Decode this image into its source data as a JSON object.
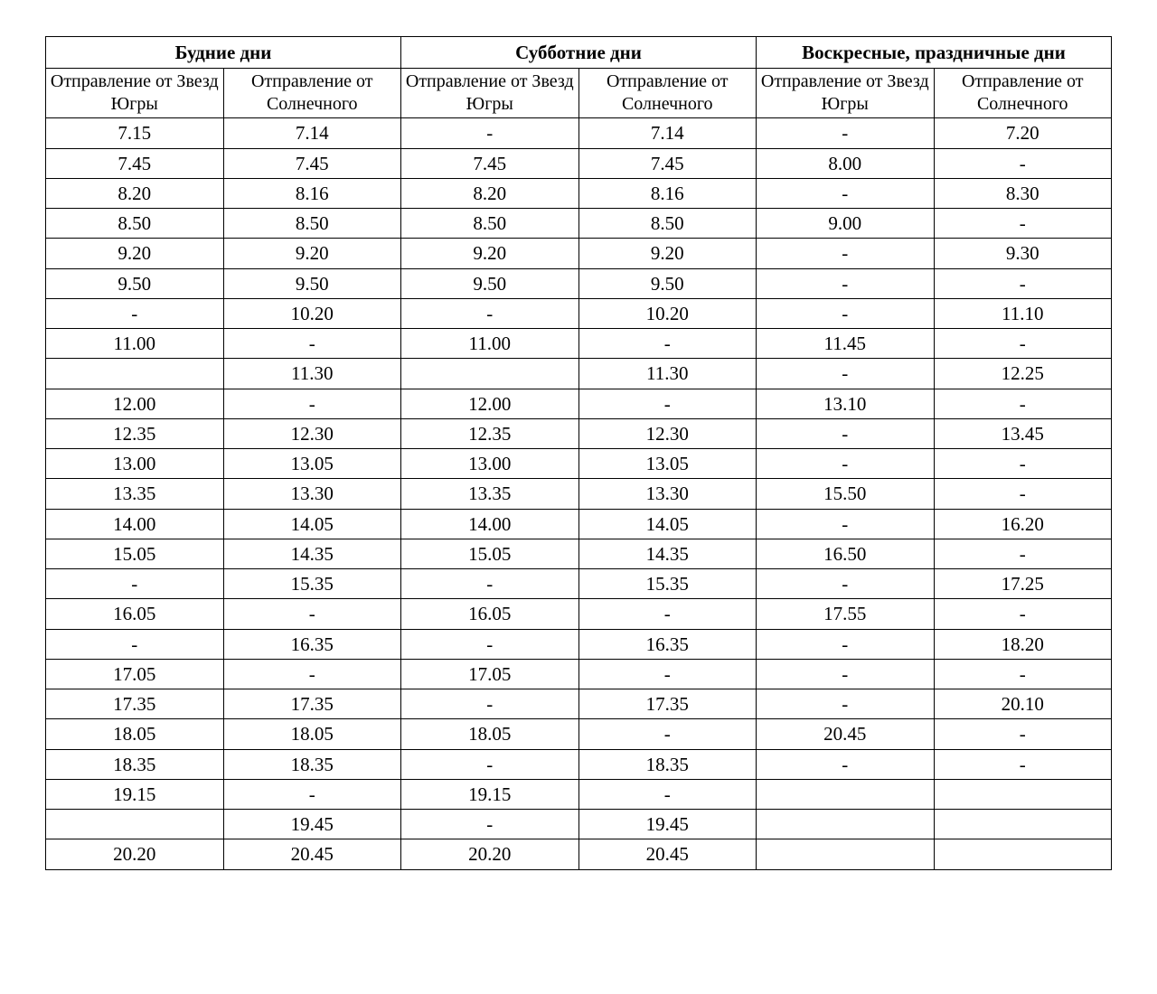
{
  "schedule": {
    "type": "table",
    "background_color": "#ffffff",
    "border_color": "#000000",
    "font_family": "Times New Roman",
    "header_fontsize": 21,
    "cell_fontsize": 21,
    "groups": [
      {
        "title": "Будние дни",
        "col_a": "Отправление от Звезд Югры",
        "col_b": "Отправление от Солнечного"
      },
      {
        "title": "Субботние дни",
        "col_a": "Отправление от Звезд Югры",
        "col_b": "Отправление от Солнечного"
      },
      {
        "title": "Воскресные, праздничные дни",
        "col_a": "Отправление от Звезд Югры",
        "col_b": "Отправление от Солнечного"
      }
    ],
    "rows": [
      [
        "7.15",
        "7.14",
        "-",
        "7.14",
        "-",
        "7.20"
      ],
      [
        "7.45",
        "7.45",
        "7.45",
        "7.45",
        "8.00",
        "-"
      ],
      [
        "8.20",
        "8.16",
        "8.20",
        "8.16",
        "-",
        "8.30"
      ],
      [
        "8.50",
        "8.50",
        "8.50",
        "8.50",
        "9.00",
        "-"
      ],
      [
        "9.20",
        "9.20",
        "9.20",
        "9.20",
        "-",
        "9.30"
      ],
      [
        "9.50",
        "9.50",
        "9.50",
        "9.50",
        "-",
        "-"
      ],
      [
        "-",
        "10.20",
        "-",
        "10.20",
        "-",
        "11.10"
      ],
      [
        "11.00",
        "-",
        "11.00",
        "-",
        "11.45",
        "-"
      ],
      [
        "",
        "11.30",
        "",
        "11.30",
        "-",
        "12.25"
      ],
      [
        "12.00",
        "-",
        "12.00",
        "-",
        "13.10",
        "-"
      ],
      [
        "12.35",
        "12.30",
        "12.35",
        "12.30",
        "-",
        "13.45"
      ],
      [
        "13.00",
        "13.05",
        "13.00",
        "13.05",
        "-",
        "-"
      ],
      [
        "13.35",
        "13.30",
        "13.35",
        "13.30",
        "15.50",
        "-"
      ],
      [
        "14.00",
        "14.05",
        "14.00",
        "14.05",
        "-",
        "16.20"
      ],
      [
        "15.05",
        "14.35",
        "15.05",
        "14.35",
        "16.50",
        "-"
      ],
      [
        "-",
        "15.35",
        "-",
        "15.35",
        "-",
        "17.25"
      ],
      [
        "16.05",
        "-",
        "16.05",
        "-",
        "17.55",
        "-"
      ],
      [
        "-",
        "16.35",
        "-",
        "16.35",
        "-",
        "18.20"
      ],
      [
        "17.05",
        "-",
        "17.05",
        "-",
        "-",
        "-"
      ],
      [
        "17.35",
        "17.35",
        "-",
        "17.35",
        "-",
        "20.10"
      ],
      [
        "18.05",
        "18.05",
        "18.05",
        "-",
        "20.45",
        "-"
      ],
      [
        "18.35",
        "18.35",
        "-",
        "18.35",
        "-",
        "-"
      ],
      [
        "19.15",
        "-",
        "19.15",
        "-",
        "",
        ""
      ],
      [
        "",
        "19.45",
        "-",
        "19.45",
        "",
        ""
      ],
      [
        "20.20",
        "20.45",
        "20.20",
        "20.45",
        "",
        ""
      ]
    ]
  }
}
